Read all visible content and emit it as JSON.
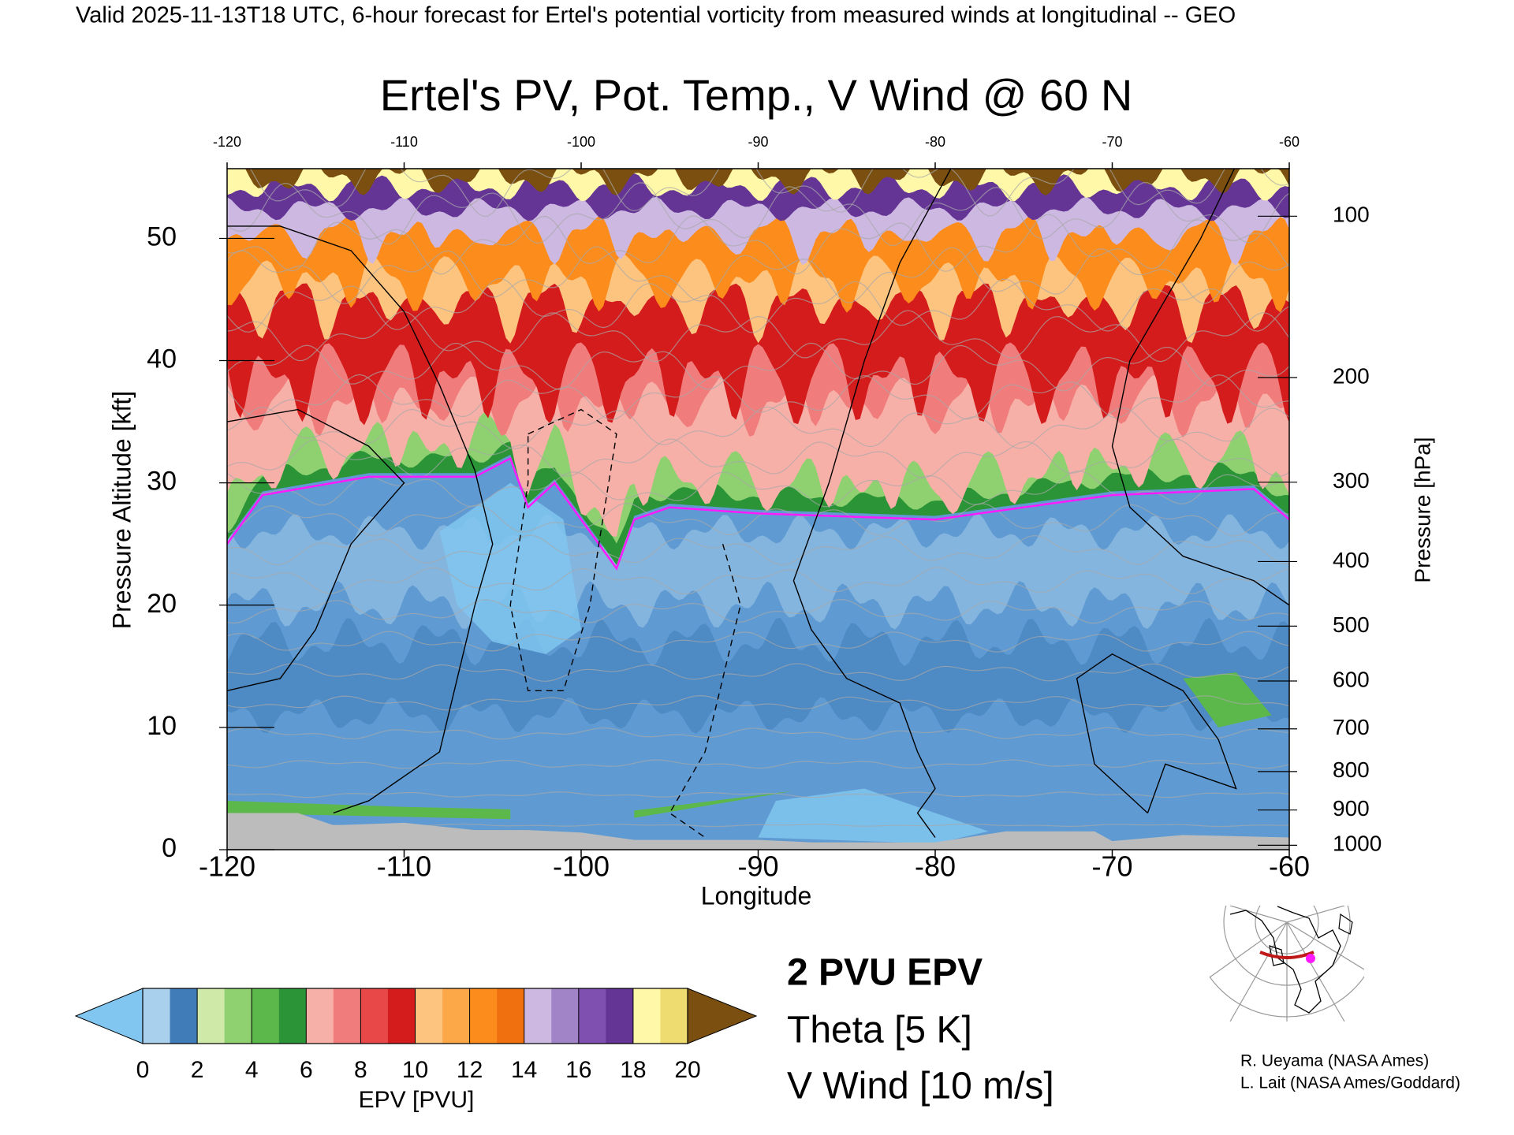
{
  "header": "Valid 2025-11-13T18 UTC, 6-hour forecast for Ertel's potential vorticity from measured winds at longitudinal -- GEO",
  "chart_data": {
    "type": "contour",
    "title": "Ertel's PV, Pot. Temp., V Wind @ 60 N",
    "x_label": "Longitude",
    "y_label": "Pressure Altitude [kft]",
    "y2_label": "Pressure [hPa]",
    "xlim": [
      -120,
      -60
    ],
    "xticks": [
      -120,
      -110,
      -100,
      -90,
      -80,
      -70,
      -60
    ],
    "ylim": [
      0,
      55.7
    ],
    "yticks": [
      0,
      10,
      20,
      30,
      40,
      50
    ],
    "y2lim": [
      1013.25,
      80
    ],
    "y2ticks": [
      100,
      200,
      300,
      400,
      500,
      600,
      700,
      800,
      900,
      1000
    ],
    "y2scale": "pressure-altitude",
    "colorbar": {
      "label": "EPV [PVU]",
      "lim": [
        0,
        20
      ],
      "ticks": [
        0,
        2,
        4,
        6,
        8,
        10,
        12,
        14,
        16,
        18,
        20
      ],
      "colors": [
        "#a9d0ec",
        "#3f7cb8",
        "#cfe9a8",
        "#8fd070",
        "#5cb84a",
        "#2a9436",
        "#f7b0a8",
        "#f07c7c",
        "#e84848",
        "#d41c1c",
        "#fdc480",
        "#fca848",
        "#fc8c1c",
        "#f07010",
        "#cdb8e2",
        "#a184c8",
        "#8050b0",
        "#653596",
        "#fff8a8",
        "#eedc70"
      ],
      "under_color": "#80c6f0",
      "over_color": "#7a4f10"
    },
    "legend": [
      {
        "name": "2 PVU EPV",
        "color": "#ff1aff"
      },
      {
        "name": "Theta [5 K]",
        "color": "#a8a8a8"
      },
      {
        "name": "V Wind [10 m/s]",
        "color": "#000000"
      }
    ]
  },
  "credits": [
    "R. Ueyama (NASA Ames)",
    "L. Lait (NASA Ames/Goddard)"
  ]
}
